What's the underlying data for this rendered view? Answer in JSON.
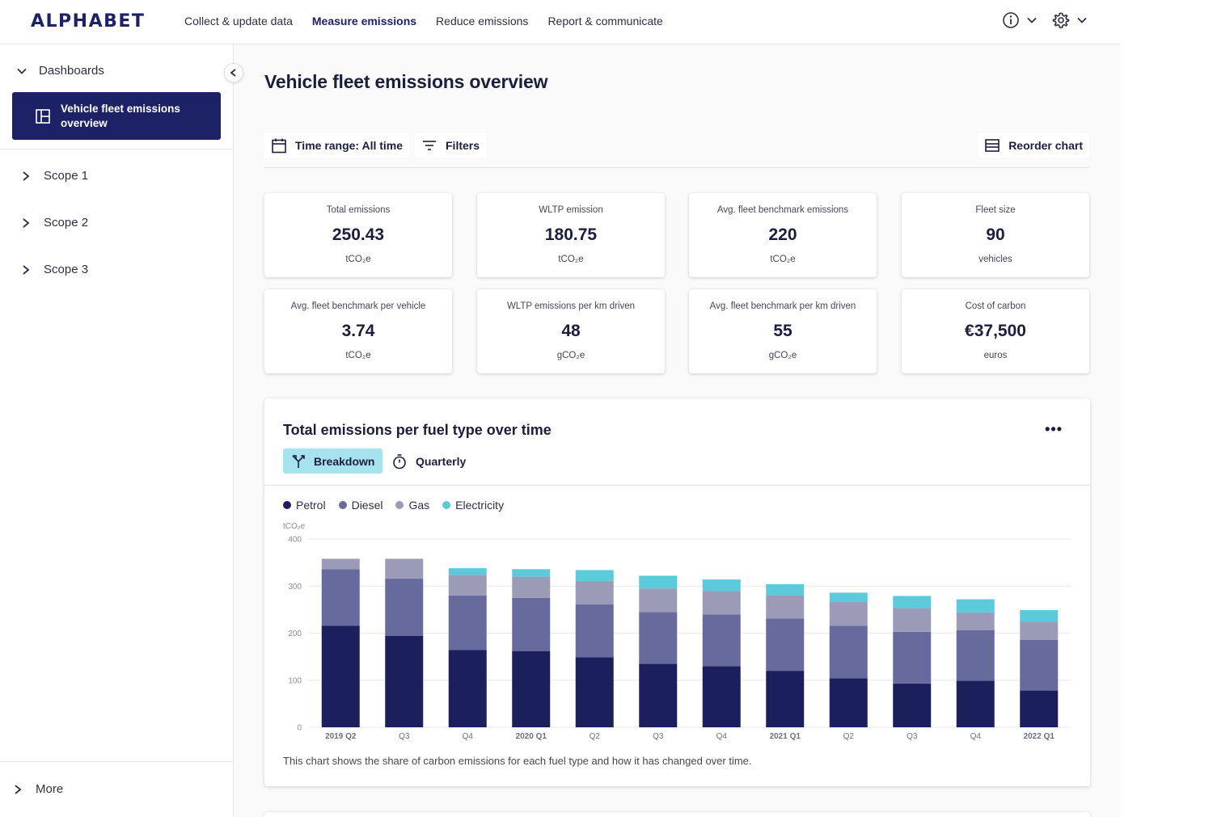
{
  "header": {
    "logo": "ALPHABET",
    "nav": [
      {
        "label": "Collect & update data"
      },
      {
        "label": "Measure emissions",
        "active": true
      },
      {
        "label": "Reduce emissions"
      },
      {
        "label": "Report & communicate"
      }
    ],
    "icons": [
      "info-icon",
      "settings-icon"
    ]
  },
  "sidebar": {
    "dashboards_label": "Dashboards",
    "active_item": "Vehicle fleet emissions overview",
    "items": [
      {
        "label": "Scope 1"
      },
      {
        "label": "Scope 2"
      },
      {
        "label": "Scope 3"
      }
    ],
    "more_label": "More"
  },
  "main": {
    "title": "Vehicle fleet emissions overview",
    "toolbar": {
      "time_range": "Time range: All time",
      "filters": "Filters",
      "reorder": "Reorder chart"
    },
    "cards": [
      {
        "title": "Total emissions",
        "value": "250.43",
        "unit": "tCO₂e"
      },
      {
        "title": "WLTP emission",
        "value": "180.75",
        "unit": "tCO₂e"
      },
      {
        "title": "Avg. fleet benchmark emissions",
        "value": "220",
        "unit": "tCO₂e"
      },
      {
        "title": "Fleet size",
        "value": "90",
        "unit": "vehicles"
      },
      {
        "title": "Avg. fleet benchmark per vehicle",
        "value": "3.74",
        "unit": "tCO₂e"
      },
      {
        "title": "WLTP emissions per km driven",
        "value": "48",
        "unit": "gCO₂e"
      },
      {
        "title": "Avg. fleet benchmark per km driven",
        "value": "55",
        "unit": "gCO₂e"
      },
      {
        "title": "Cost of carbon",
        "value": "€37,500",
        "unit": "euros"
      }
    ],
    "chart_card": {
      "title": "Total emissions per fuel type over time",
      "breakdown_label": "Breakdown",
      "quarterly_label": "Quarterly",
      "caption": "This chart shows the share of carbon emissions for each fuel type and how it has changed over time."
    }
  },
  "colors": {
    "brand": "#1d2266",
    "petrol": "#1b1f5c",
    "diesel": "#676a9c",
    "gas": "#9b9bb8",
    "electricity": "#5bcbdc",
    "breakdown_bg": "#a7e3ef"
  },
  "chart_data": {
    "type": "bar",
    "stacked": true,
    "ylabel": "tCO₂e",
    "ylim": [
      0,
      400
    ],
    "yticks": [
      0,
      100,
      200,
      300,
      400
    ],
    "categories": [
      "2019 Q2",
      "Q3",
      "Q4",
      "2020 Q1",
      "Q2",
      "Q3",
      "Q4",
      "2021 Q1",
      "Q2",
      "Q3",
      "Q4",
      "2022 Q1"
    ],
    "series": [
      {
        "name": "Petrol",
        "color": "#1b1f5c",
        "values": [
          216,
          194,
          164,
          162,
          149,
          135,
          130,
          120,
          104,
          93,
          99,
          78
        ]
      },
      {
        "name": "Diesel",
        "color": "#676a9c",
        "values": [
          120,
          122,
          116,
          113,
          112,
          110,
          110,
          111,
          112,
          110,
          107,
          108
        ]
      },
      {
        "name": "Gas",
        "color": "#9b9bb8",
        "values": [
          22,
          42,
          44,
          45,
          50,
          50,
          50,
          50,
          50,
          50,
          38,
          38
        ]
      },
      {
        "name": "Electricity",
        "color": "#5bcbdc",
        "values": [
          0,
          0,
          14,
          16,
          23,
          27,
          24,
          23,
          20,
          26,
          28,
          25
        ]
      }
    ],
    "legend": "top-left",
    "grid": true
  }
}
